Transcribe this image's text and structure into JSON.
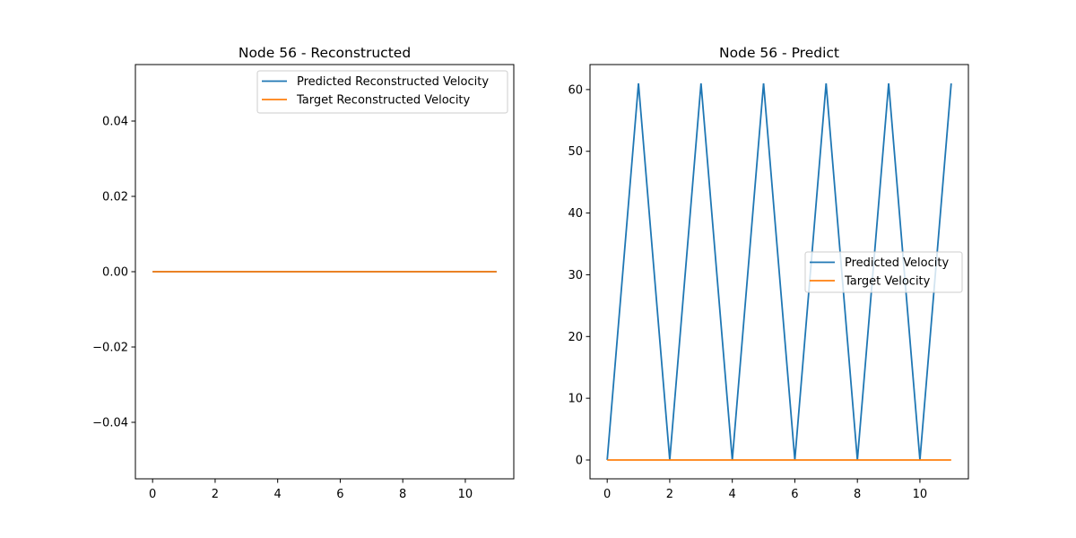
{
  "chart_data": [
    {
      "type": "line",
      "title": "Node 56 - Reconstructed",
      "xlabel": "",
      "ylabel": "",
      "xlim": [
        -0.55,
        11.55
      ],
      "ylim": [
        -0.055,
        0.055
      ],
      "xticks": [
        0,
        2,
        4,
        6,
        8,
        10
      ],
      "yticks": [
        -0.04,
        -0.02,
        0.0,
        0.02,
        0.04
      ],
      "ytick_labels": [
        "−0.04",
        "−0.02",
        "0.00",
        "0.02",
        "0.04"
      ],
      "xtick_labels": [
        "0",
        "2",
        "4",
        "6",
        "8",
        "10"
      ],
      "legend_position": "top-right",
      "x": [
        0,
        1,
        2,
        3,
        4,
        5,
        6,
        7,
        8,
        9,
        10,
        11
      ],
      "series": [
        {
          "name": "Predicted Reconstructed Velocity",
          "color": "#1f77b4",
          "values": [
            0,
            0,
            0,
            0,
            0,
            0,
            0,
            0,
            0,
            0,
            0,
            0
          ]
        },
        {
          "name": "Target Reconstructed Velocity",
          "color": "#ff7f0e",
          "values": [
            0,
            0,
            0,
            0,
            0,
            0,
            0,
            0,
            0,
            0,
            0,
            0
          ]
        }
      ]
    },
    {
      "type": "line",
      "title": "Node 56 - Predict",
      "xlabel": "",
      "ylabel": "",
      "xlim": [
        -0.55,
        11.55
      ],
      "ylim": [
        -3.05,
        64.05
      ],
      "xticks": [
        0,
        2,
        4,
        6,
        8,
        10
      ],
      "yticks": [
        0,
        10,
        20,
        30,
        40,
        50,
        60
      ],
      "ytick_labels": [
        "0",
        "10",
        "20",
        "30",
        "40",
        "50",
        "60"
      ],
      "xtick_labels": [
        "0",
        "2",
        "4",
        "6",
        "8",
        "10"
      ],
      "legend_position": "center-right",
      "x": [
        0,
        1,
        2,
        3,
        4,
        5,
        6,
        7,
        8,
        9,
        10,
        11
      ],
      "series": [
        {
          "name": "Predicted Velocity",
          "color": "#1f77b4",
          "values": [
            0,
            61,
            0,
            61,
            0,
            61,
            0,
            61,
            0,
            61,
            0,
            61
          ]
        },
        {
          "name": "Target Velocity",
          "color": "#ff7f0e",
          "values": [
            0,
            0,
            0,
            0,
            0,
            0,
            0,
            0,
            0,
            0,
            0,
            0
          ]
        }
      ]
    }
  ]
}
